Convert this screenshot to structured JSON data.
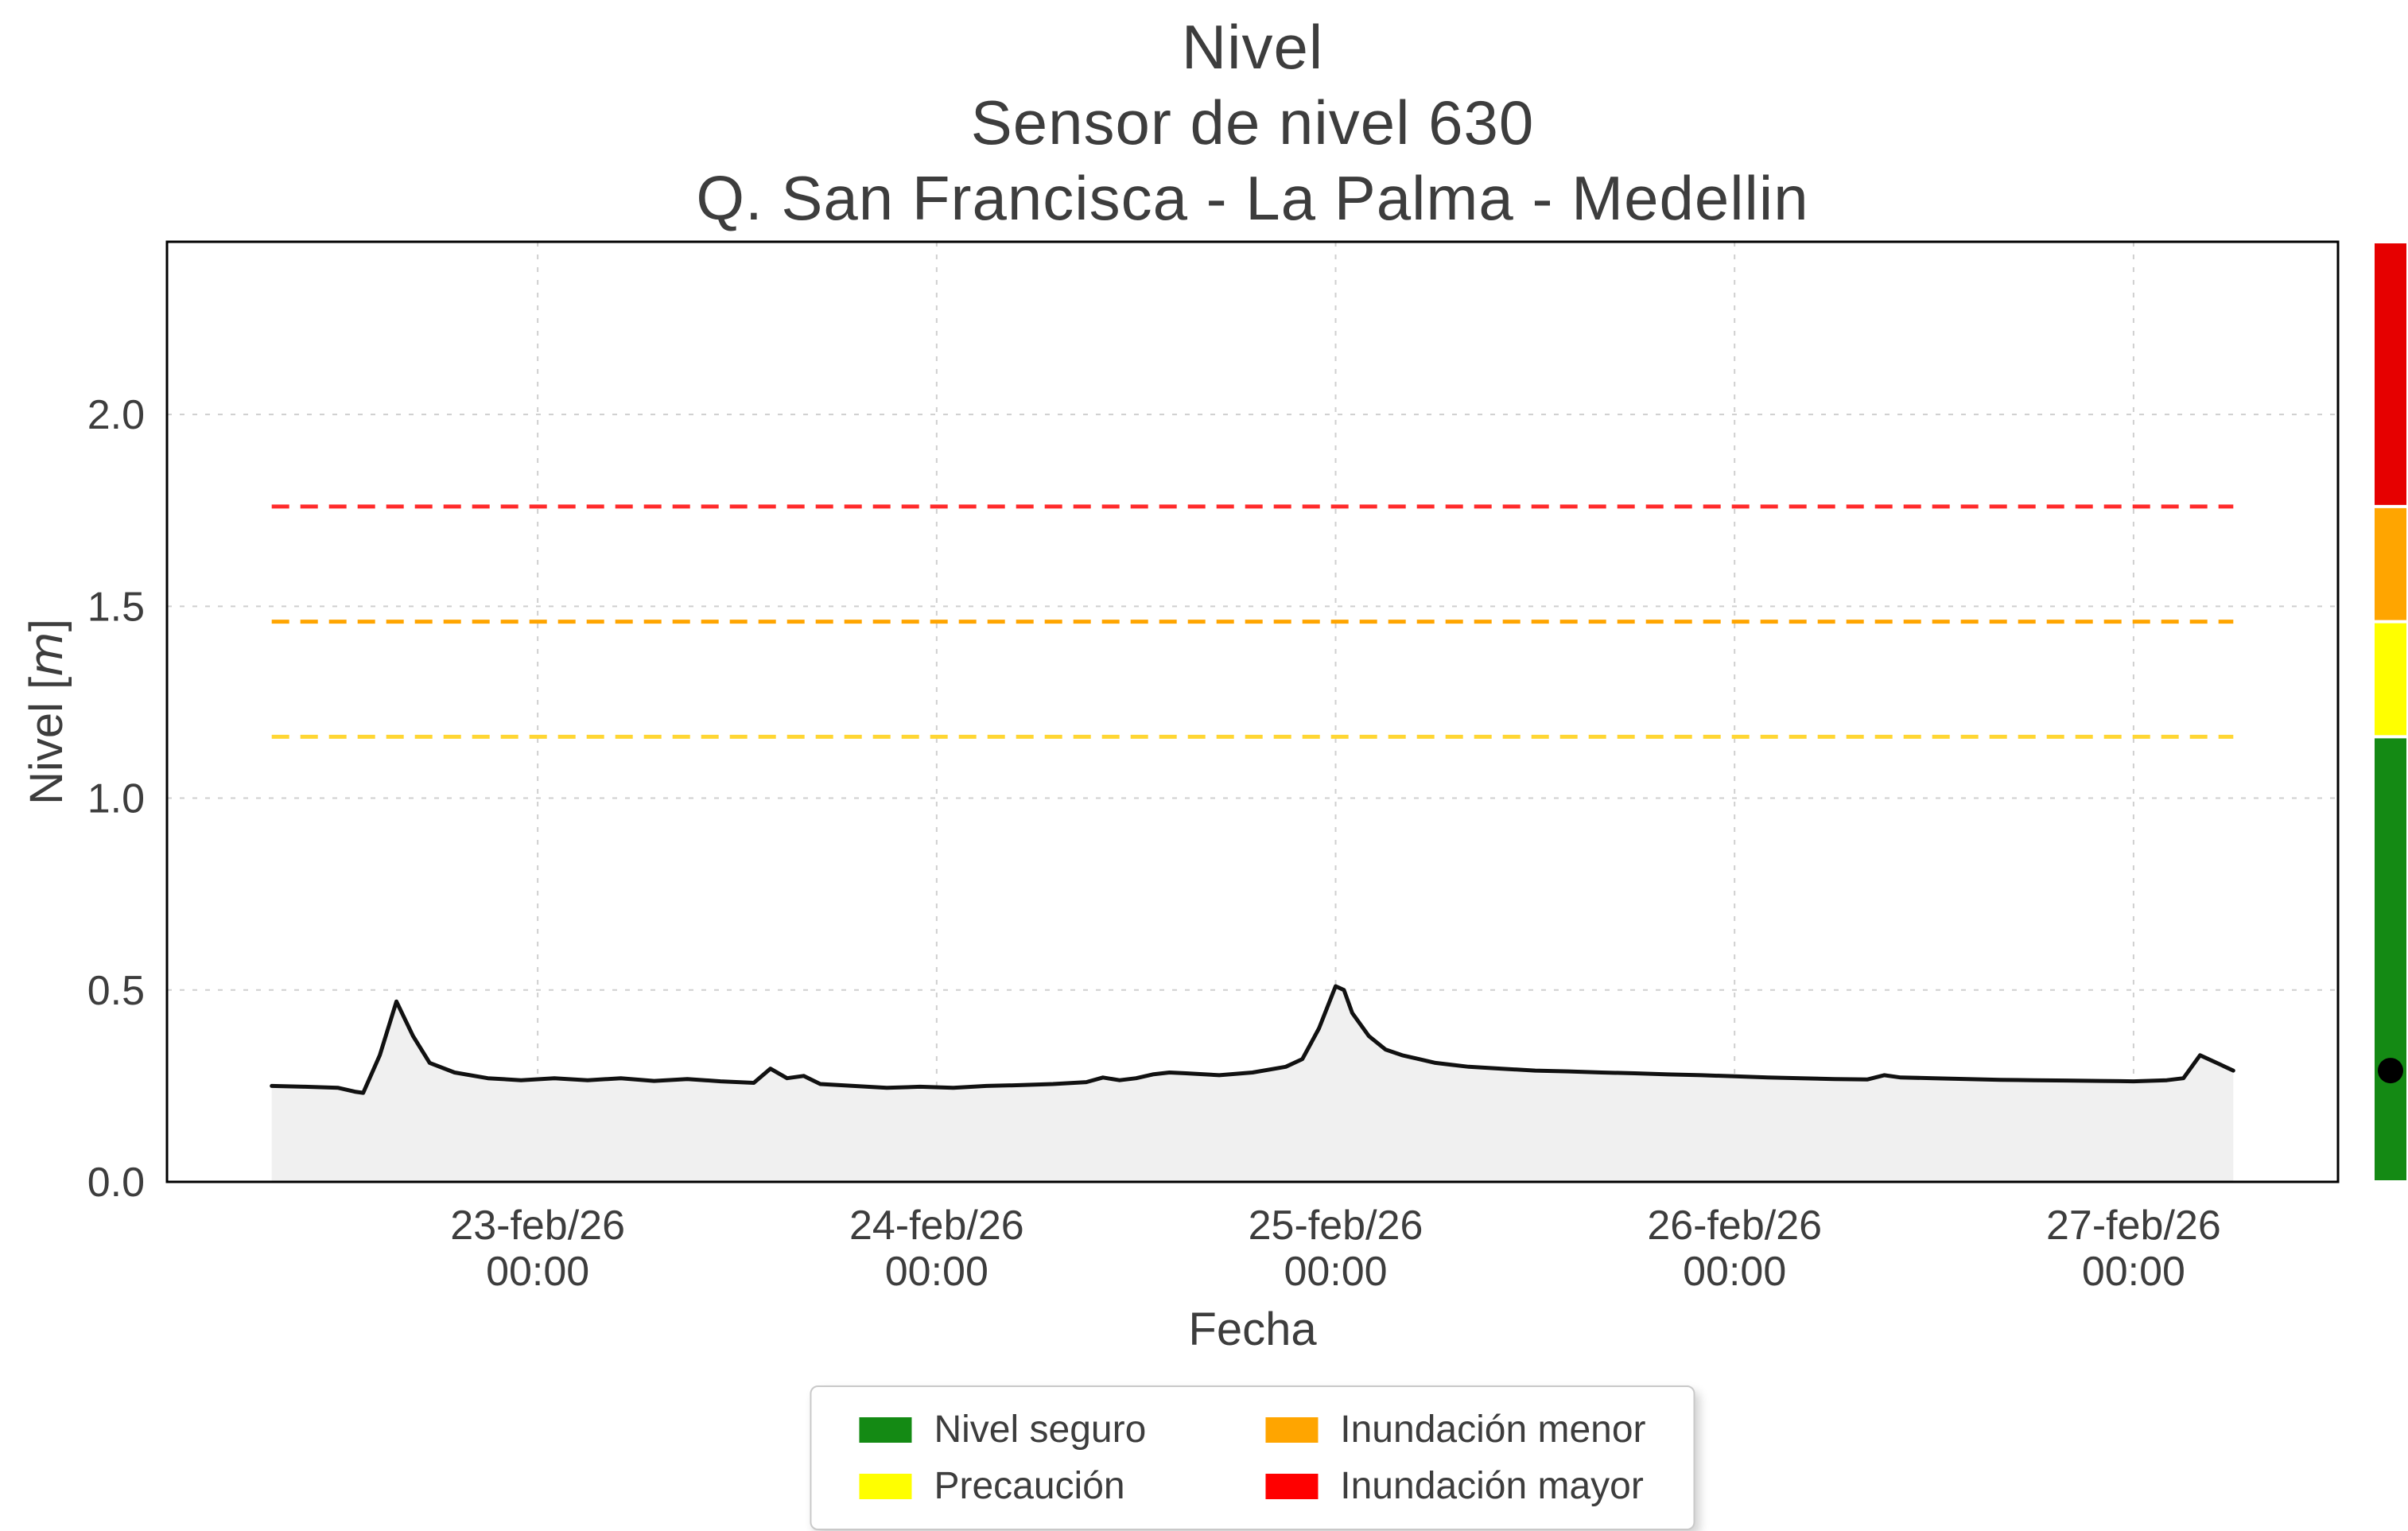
{
  "title": {
    "line1": "Nivel",
    "line2": "Sensor de nivel 630",
    "line3": "Q. San Francisca - La Palma - Medellin"
  },
  "axes": {
    "xlabel": "Fecha",
    "ylabel": {
      "pre": "Nivel [",
      "var": "m",
      "post": "]"
    },
    "yticks": [
      {
        "value": 0.0,
        "label": "0.0"
      },
      {
        "value": 0.5,
        "label": "0.5"
      },
      {
        "value": 1.0,
        "label": "1.0"
      },
      {
        "value": 1.5,
        "label": "1.5"
      },
      {
        "value": 2.0,
        "label": "2.0"
      }
    ],
    "xticks": [
      {
        "hour": 16,
        "line1": "23-feb/26",
        "line2": "00:00"
      },
      {
        "hour": 40,
        "line1": "24-feb/26",
        "line2": "00:00"
      },
      {
        "hour": 64,
        "line1": "25-feb/26",
        "line2": "00:00"
      },
      {
        "hour": 88,
        "line1": "26-feb/26",
        "line2": "00:00"
      },
      {
        "hour": 112,
        "line1": "27-feb/26",
        "line2": "00:00"
      }
    ]
  },
  "legend": {
    "items": [
      {
        "label": "Nivel seguro",
        "color": "#148a14"
      },
      {
        "label": "Inundación menor",
        "color": "#ffa500"
      },
      {
        "label": "Precaución",
        "color": "#ffff00"
      },
      {
        "label": "Inundación mayor",
        "color": "#ff0000"
      }
    ]
  },
  "chart_data": {
    "type": "area",
    "title": "Nivel - Sensor de nivel 630 - Q. San Francisca - La Palma - Medellin",
    "xlabel": "Fecha",
    "ylabel": "Nivel [m]",
    "ylim": [
      0,
      2.45
    ],
    "x_unit": "hours since 22-feb/26 08:00",
    "grid": true,
    "legend_position": "bottom",
    "series_color": "#111111",
    "fill_color": "#f0f0f0",
    "x_hours": [
      0,
      2,
      4,
      5,
      5.5,
      6.5,
      7.5,
      8.5,
      9.5,
      11,
      13,
      15,
      17,
      19,
      21,
      23,
      25,
      27,
      29,
      30,
      31,
      32,
      33,
      35,
      37,
      39,
      41,
      43,
      45,
      47,
      49,
      50,
      51,
      52,
      53,
      54,
      55,
      57,
      59,
      61,
      62,
      63,
      64,
      64.5,
      65,
      66,
      67,
      68,
      69,
      70,
      71,
      72,
      74,
      76,
      78,
      80,
      82,
      84,
      86,
      88,
      90,
      92,
      94,
      96,
      97,
      98,
      100,
      102,
      104,
      106,
      108,
      110,
      112,
      114,
      115,
      116,
      117,
      118
    ],
    "y_m": [
      0.25,
      0.248,
      0.245,
      0.235,
      0.232,
      0.33,
      0.47,
      0.38,
      0.31,
      0.285,
      0.27,
      0.265,
      0.27,
      0.265,
      0.27,
      0.263,
      0.268,
      0.262,
      0.258,
      0.295,
      0.27,
      0.276,
      0.255,
      0.25,
      0.245,
      0.248,
      0.245,
      0.25,
      0.252,
      0.255,
      0.26,
      0.272,
      0.265,
      0.27,
      0.28,
      0.285,
      0.283,
      0.278,
      0.285,
      0.3,
      0.32,
      0.4,
      0.51,
      0.5,
      0.44,
      0.38,
      0.345,
      0.33,
      0.32,
      0.31,
      0.305,
      0.3,
      0.295,
      0.29,
      0.288,
      0.285,
      0.283,
      0.28,
      0.278,
      0.275,
      0.272,
      0.27,
      0.268,
      0.267,
      0.278,
      0.272,
      0.27,
      0.268,
      0.266,
      0.265,
      0.264,
      0.263,
      0.262,
      0.265,
      0.27,
      0.33,
      0.31,
      0.29
    ],
    "thresholds": [
      {
        "label": "Inundación mayor",
        "value": 1.76,
        "color": "#ff2a2a"
      },
      {
        "label": "Inundación menor",
        "value": 1.46,
        "color": "#ffa500"
      },
      {
        "label": "Precaución",
        "value": 1.16,
        "color": "#ffd633"
      }
    ],
    "current_level_m": 0.29,
    "colorbar": {
      "segments": [
        {
          "label": "Inundación mayor",
          "color": "#e60000",
          "from": 1.76,
          "to": 2.45
        },
        {
          "label": "Inundación menor",
          "color": "#ffa500",
          "from": 1.46,
          "to": 1.76
        },
        {
          "label": "Precaución",
          "color": "#ffff00",
          "from": 1.16,
          "to": 1.46
        },
        {
          "label": "Nivel seguro",
          "color": "#148a14",
          "from": 0.0,
          "to": 1.16
        }
      ]
    }
  }
}
